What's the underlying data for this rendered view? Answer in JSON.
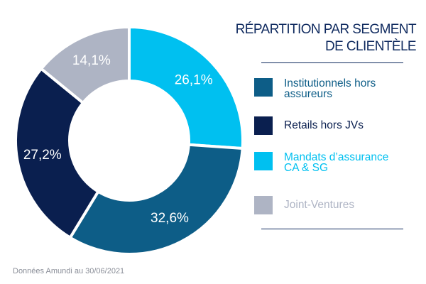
{
  "colors": {
    "institutionnels": "#0d5d87",
    "retails": "#0a1f4f",
    "mandats": "#00c0f0",
    "joint_ventures": "#aeb4c4",
    "title": "#0f2a5f"
  },
  "title_lines": [
    "RÉPARTITION PAR SEGMENT",
    "DE CLIENTÈLE"
  ],
  "chart_data": {
    "type": "pie",
    "title": "RÉPARTITION PAR SEGMENT DE CLIENTÈLE",
    "donut": true,
    "unit": "%",
    "categories": [
      "Institutionnels hors assureurs",
      "Retails hors JVs",
      "Mandats d’assurance CA & SG",
      "Joint-Ventures"
    ],
    "values": [
      32.6,
      27.2,
      26.1,
      14.1
    ],
    "value_labels": [
      "32,6%",
      "27,2%",
      "26,1%",
      "14,1%"
    ],
    "legend_position": "right"
  },
  "legend": [
    {
      "label_lines": [
        "Institutionnels hors",
        "assureurs"
      ],
      "color": "#0d5d87",
      "text_color": "#0d5d87"
    },
    {
      "label_lines": [
        "Retails hors JVs"
      ],
      "color": "#0a1f4f",
      "text_color": "#0a1f4f"
    },
    {
      "label_lines": [
        "Mandats d’assurance",
        "CA & SG"
      ],
      "color": "#00c0f0",
      "text_color": "#00c0f0"
    },
    {
      "label_lines": [
        "Joint-Ventures"
      ],
      "color": "#aeb4c4",
      "text_color": "#aeb4c4"
    }
  ],
  "footnote": "Données Amundi au 30/06/2021"
}
